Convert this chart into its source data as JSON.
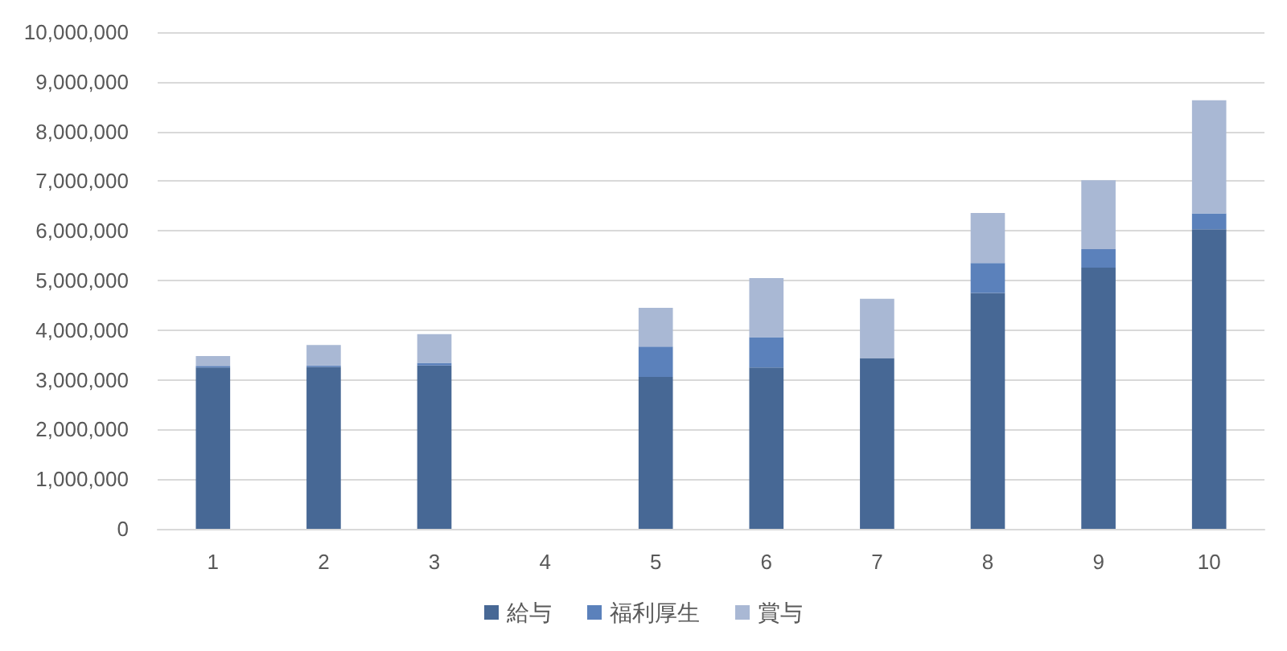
{
  "chart_data": {
    "type": "bar",
    "stacked": true,
    "categories": [
      "1",
      "2",
      "3",
      "4",
      "5",
      "6",
      "7",
      "8",
      "9",
      "10"
    ],
    "series": [
      {
        "name": "給与",
        "color": "#476895",
        "values": [
          3250000,
          3260000,
          3290000,
          null,
          3060000,
          3250000,
          3440000,
          4750000,
          5260000,
          6030000
        ]
      },
      {
        "name": "福利厚生",
        "color": "#5b81bb",
        "values": [
          30000,
          30000,
          50000,
          null,
          610000,
          610000,
          null,
          600000,
          370000,
          320000
        ]
      },
      {
        "name": "賞与",
        "color": "#a9b8d4",
        "values": [
          200000,
          410000,
          580000,
          null,
          780000,
          1190000,
          1190000,
          1010000,
          1390000,
          2280000
        ]
      }
    ],
    "ylim": [
      0,
      10000000
    ],
    "yticks": [
      {
        "value": 0,
        "label": "0"
      },
      {
        "value": 1000000,
        "label": "1,000,000"
      },
      {
        "value": 2000000,
        "label": "2,000,000"
      },
      {
        "value": 3000000,
        "label": "3,000,000"
      },
      {
        "value": 4000000,
        "label": "4,000,000"
      },
      {
        "value": 5000000,
        "label": "5,000,000"
      },
      {
        "value": 6000000,
        "label": "6,000,000"
      },
      {
        "value": 7000000,
        "label": "7,000,000"
      },
      {
        "value": 8000000,
        "label": "8,000,000"
      },
      {
        "value": 9000000,
        "label": "9,000,000"
      },
      {
        "value": 10000000,
        "label": "10,000,000"
      }
    ],
    "grid": "y",
    "legend": "bottom"
  }
}
